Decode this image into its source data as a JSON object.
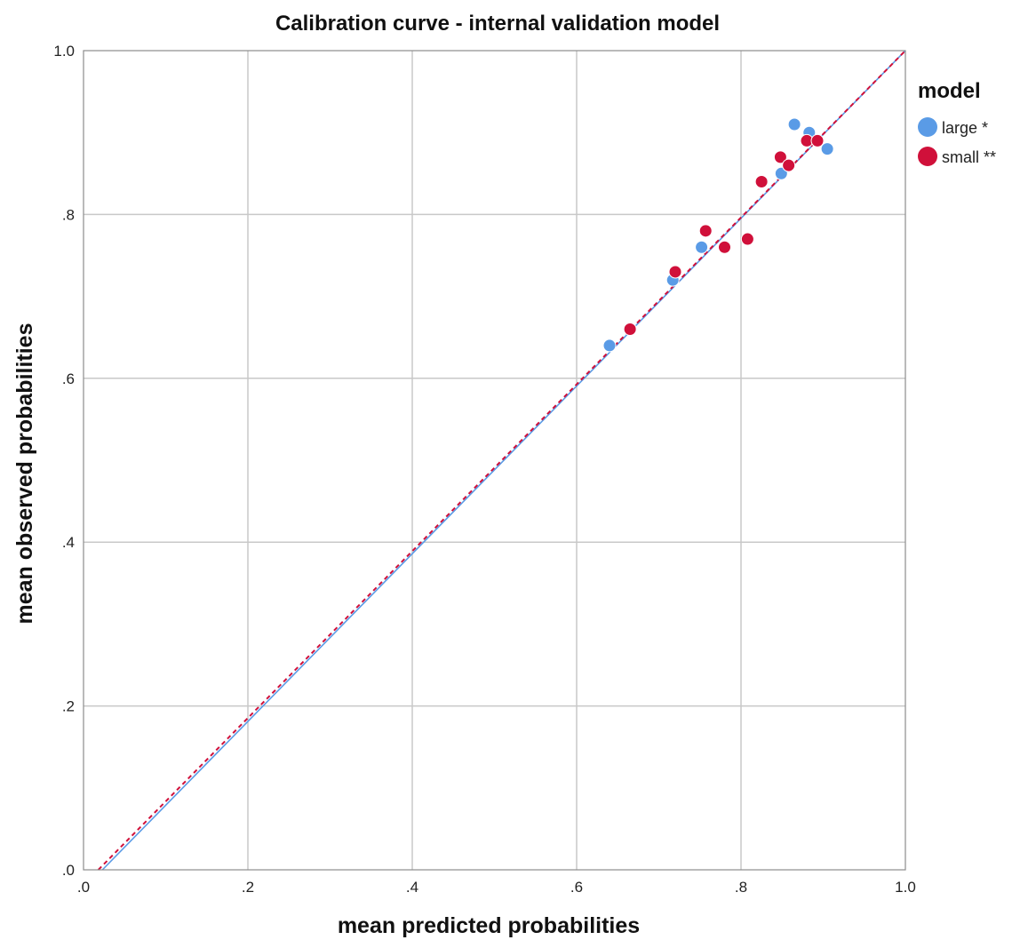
{
  "chart_data": {
    "type": "scatter",
    "title": "Calibration curve - internal validation model",
    "xlabel": "mean predicted probabilities",
    "ylabel": "mean observed probabilities",
    "xlim": [
      0,
      1
    ],
    "ylim": [
      0,
      1
    ],
    "x_ticks": [
      ".0",
      ".2",
      ".4",
      ".6",
      ".8",
      "1.0"
    ],
    "y_ticks": [
      ".0",
      ".2",
      ".4",
      ".6",
      ".8",
      "1.0"
    ],
    "grid": true,
    "legend": {
      "title": "model",
      "position": "right"
    },
    "series": [
      {
        "name": "large *",
        "color": "#5a9be6",
        "points": [
          {
            "x": 0.64,
            "y": 0.64
          },
          {
            "x": 0.717,
            "y": 0.72
          },
          {
            "x": 0.752,
            "y": 0.76
          },
          {
            "x": 0.78,
            "y": 0.76
          },
          {
            "x": 0.808,
            "y": 0.77
          },
          {
            "x": 0.826,
            "y": 0.84
          },
          {
            "x": 0.849,
            "y": 0.85
          },
          {
            "x": 0.865,
            "y": 0.91
          },
          {
            "x": 0.883,
            "y": 0.9
          },
          {
            "x": 0.905,
            "y": 0.88
          }
        ],
        "fit_line": {
          "x": [
            0.023,
            1.0
          ],
          "y": [
            0.0,
            1.0
          ],
          "style": "solid"
        }
      },
      {
        "name": "small **",
        "color": "#d0103a",
        "points": [
          {
            "x": 0.665,
            "y": 0.66
          },
          {
            "x": 0.72,
            "y": 0.73
          },
          {
            "x": 0.757,
            "y": 0.78
          },
          {
            "x": 0.78,
            "y": 0.76
          },
          {
            "x": 0.808,
            "y": 0.77
          },
          {
            "x": 0.825,
            "y": 0.84
          },
          {
            "x": 0.848,
            "y": 0.87
          },
          {
            "x": 0.858,
            "y": 0.86
          },
          {
            "x": 0.88,
            "y": 0.89
          },
          {
            "x": 0.893,
            "y": 0.89
          }
        ],
        "fit_line": {
          "x": [
            0.018,
            1.0
          ],
          "y": [
            0.0,
            1.0
          ],
          "style": "dashed"
        }
      }
    ]
  }
}
